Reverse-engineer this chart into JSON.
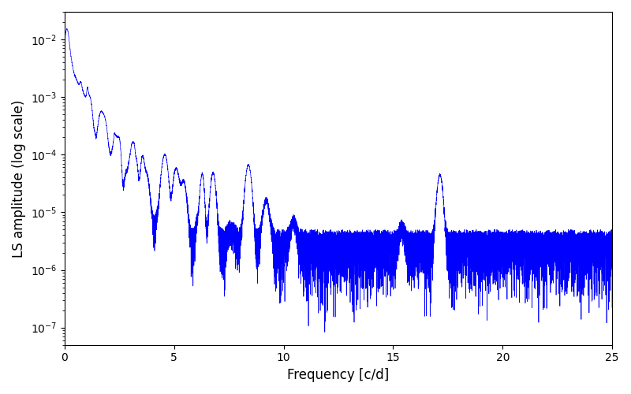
{
  "xlabel": "Frequency [c/d]",
  "ylabel": "LS amplitude (log scale)",
  "line_color": "#0000ff",
  "xlim": [
    0,
    25
  ],
  "ylim": [
    5e-08,
    0.03
  ],
  "yscale": "log",
  "background_color": "#ffffff",
  "fig_width": 8.0,
  "fig_height": 5.0,
  "dpi": 100,
  "seed": 7,
  "n_points": 10000,
  "freq_max": 25.0,
  "line_width": 0.5,
  "xticks": [
    0,
    5,
    10,
    15,
    20,
    25
  ]
}
